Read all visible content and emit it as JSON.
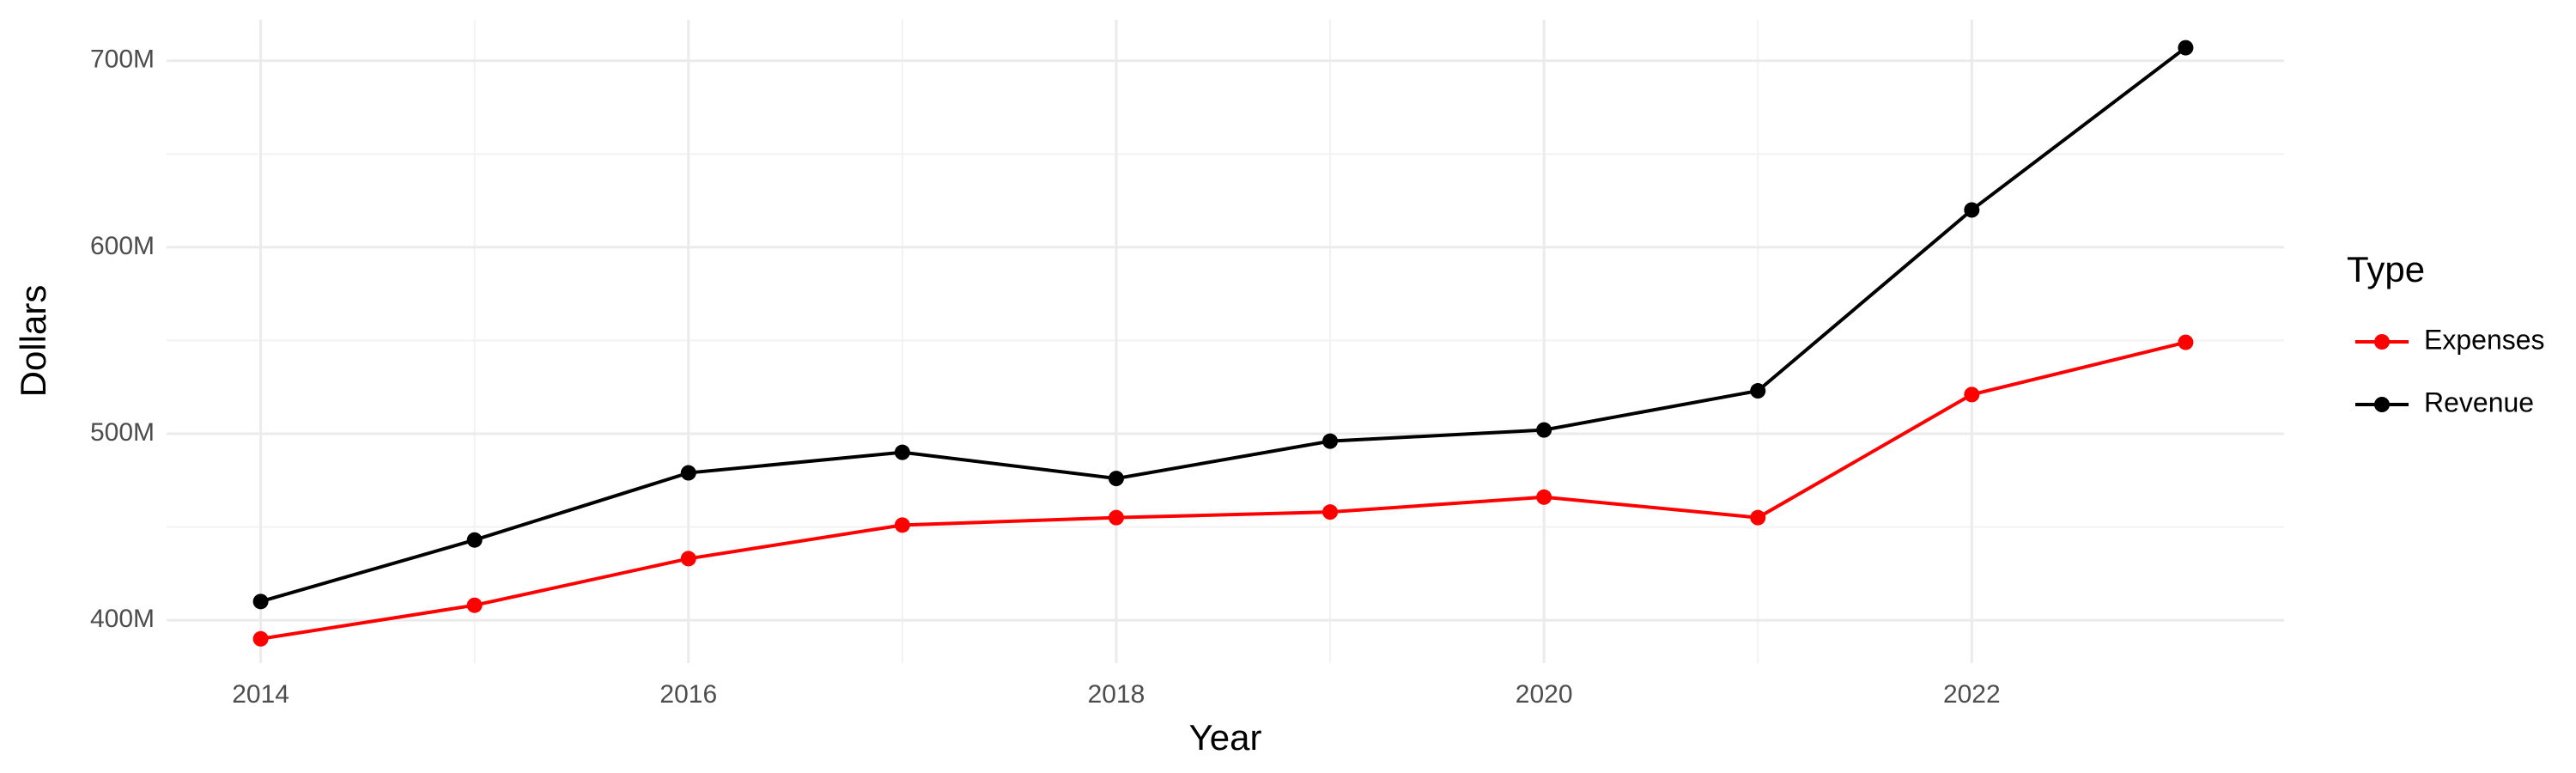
{
  "chart_data": {
    "type": "line",
    "x_label": "Year",
    "y_label": "Dollars",
    "legend_title": "Type",
    "x": [
      2014,
      2015,
      2016,
      2017,
      2018,
      2019,
      2020,
      2021,
      2022,
      2023
    ],
    "series": [
      {
        "name": "Expenses",
        "color": "#ff0000",
        "values": [
          390000000,
          408000000,
          433000000,
          451000000,
          455000000,
          458000000,
          466000000,
          455000000,
          521000000,
          549000000
        ]
      },
      {
        "name": "Revenue",
        "color": "#000000",
        "values": [
          410000000,
          443000000,
          479000000,
          490000000,
          476000000,
          496000000,
          502000000,
          523000000,
          620000000,
          707000000
        ]
      }
    ],
    "xlim": [
      2013.56,
      2023.46
    ],
    "xticks": [
      2014,
      2016,
      2018,
      2020,
      2022
    ],
    "ylim": [
      377000000,
      722000000
    ],
    "yticks": [
      {
        "value": 400000000,
        "label": "400M"
      },
      {
        "value": 500000000,
        "label": "500M"
      },
      {
        "value": 600000000,
        "label": "600M"
      },
      {
        "value": 700000000,
        "label": "700M"
      }
    ],
    "grid": true,
    "legend": "right"
  }
}
